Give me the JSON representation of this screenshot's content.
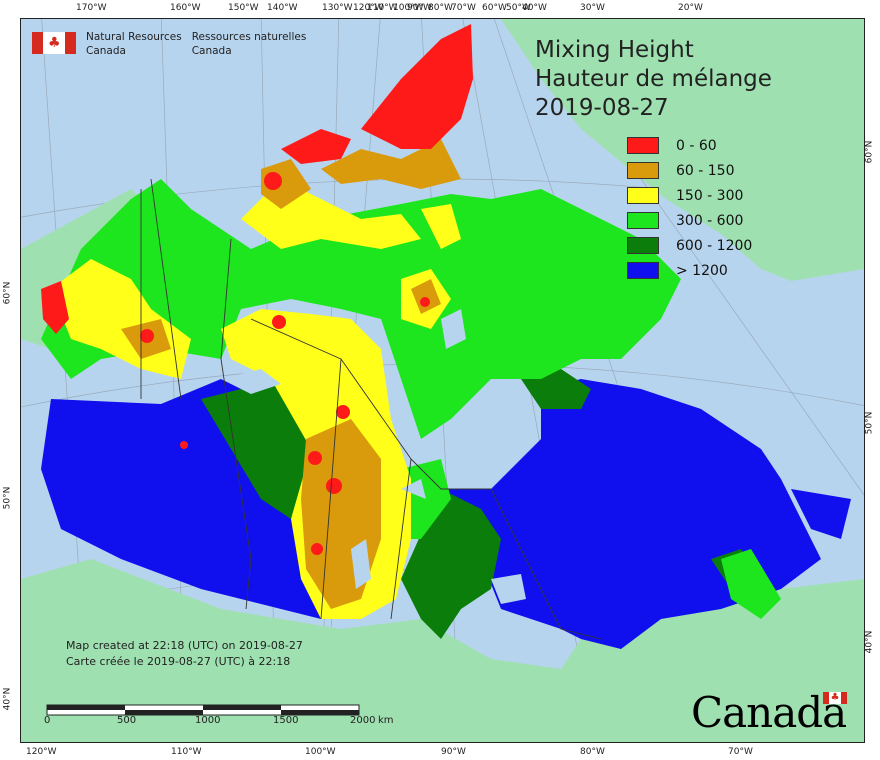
{
  "title": {
    "line1": "Mixing Height",
    "line2": "Hauteur de mélange",
    "date": "2019-08-27"
  },
  "agency": {
    "en_line1": "Natural Resources",
    "en_line2": "Canada",
    "fr_line1": "Ressources naturelles",
    "fr_line2": "Canada"
  },
  "legend": [
    {
      "label": "0 - 60",
      "color": "#ff1a1a"
    },
    {
      "label": "60 - 150",
      "color": "#d99a0b"
    },
    {
      "label": "150 - 300",
      "color": "#ffff1a"
    },
    {
      "label": "300 - 600",
      "color": "#1ee61e"
    },
    {
      "label": "600 - 1200",
      "color": "#0a7d0a"
    },
    {
      "label": "> 1200",
      "color": "#1010ee"
    }
  ],
  "credit": {
    "en": "Map created at 22:18 (UTC) on 2019-08-27",
    "fr": "Carte créée le 2019-08-27 (UTC) à 22:18"
  },
  "wordmark": "Canada",
  "scale_bar": {
    "labels": [
      "0",
      "500",
      "1000",
      "1500",
      "2000"
    ],
    "unit": "km"
  },
  "top_longitudes": [
    "170°W",
    "160°W",
    "150°W",
    "140°W",
    "130°W",
    "120°W",
    "110°W",
    "100°W",
    "90°W",
    "80°W",
    "70°W",
    "60°W",
    "50°W",
    "40°W",
    "30°W",
    "20°W"
  ],
  "bottom_longitudes": [
    "120°W",
    "110°W",
    "100°W",
    "90°W",
    "80°W",
    "70°W"
  ],
  "left_latitudes": [
    "60°N",
    "50°N",
    "40°N"
  ],
  "right_latitudes": [
    "60°N",
    "50°N",
    "40°N"
  ],
  "colors": {
    "ocean": "#b7d4ee",
    "land_other": "#9fe0b0",
    "border": "#333333"
  }
}
